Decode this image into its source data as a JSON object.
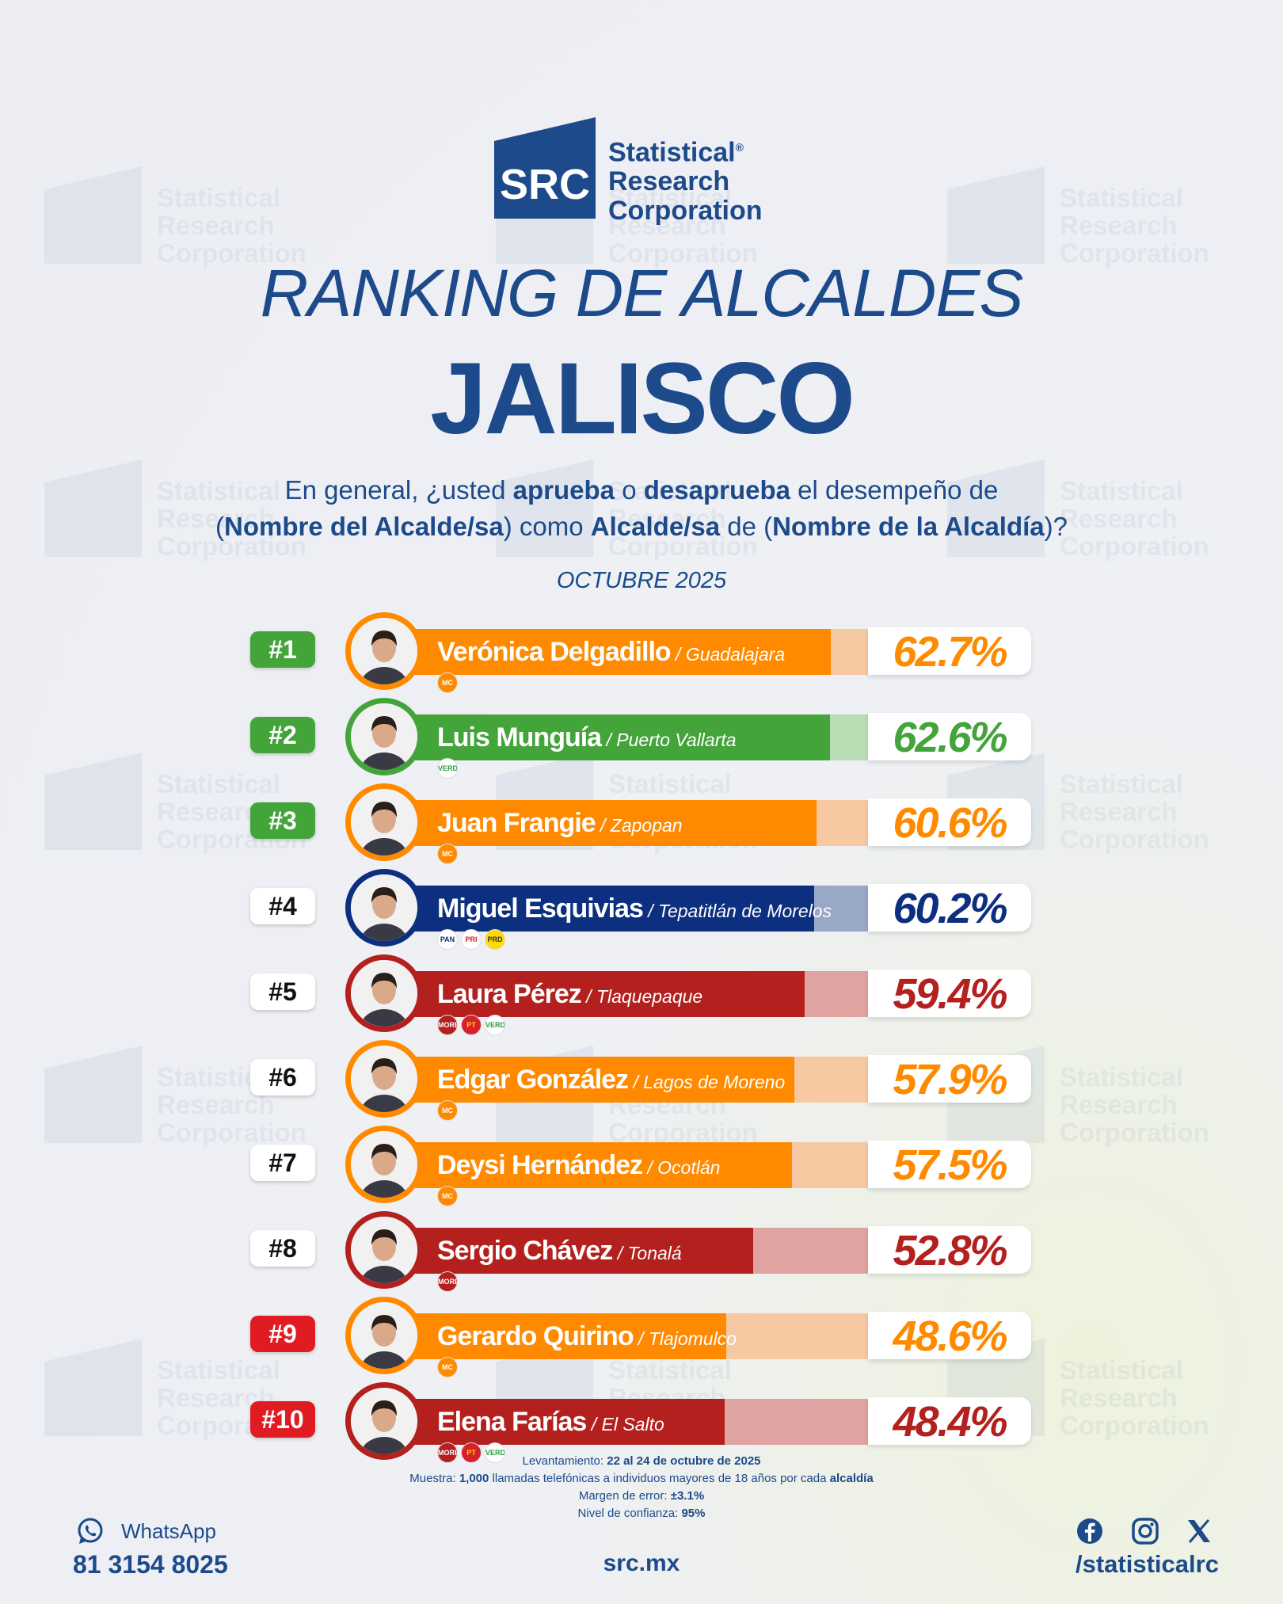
{
  "brand": {
    "logo_letters": "SRC",
    "name_line1": "Statistical",
    "name_line2": "Research",
    "name_line3": "Corporation",
    "registered": "®"
  },
  "header": {
    "title": "RANKING DE ALCALDES",
    "state": "JALISCO",
    "question": {
      "p1": "En general, ¿usted ",
      "b1": "aprueba",
      "p2": " o ",
      "b2": "desaprueba",
      "p3": " el desempeño de",
      "p4": "(",
      "b3": "Nombre del Alcalde/sa",
      "p5": ") como ",
      "b4": "Alcalde/sa",
      "p6": " de (",
      "b5": "Nombre de la Alcaldía",
      "p7": ")?"
    },
    "date": "OCTUBRE 2025"
  },
  "colors": {
    "orange": "#ff8a00",
    "orange_light": "#f7c9a3",
    "green": "#43a43a",
    "green_light": "#b9ddb5",
    "navy": "#0d2f7f",
    "navy_light": "#9aa8c8",
    "red": "#b3201d",
    "red_light": "#dfa3a1"
  },
  "chart_data": {
    "type": "bar",
    "title": "RANKING DE ALCALDES",
    "categories": [
      "Verónica Delgadillo",
      "Luis Munguía",
      "Juan Frangie",
      "Miguel Esquivias",
      "Laura Pérez",
      "Edgar González",
      "Deysi Hernández",
      "Sergio Chávez",
      "Gerardo Quirino",
      "Elena Farías"
    ],
    "values": [
      62.7,
      62.6,
      60.6,
      60.2,
      59.4,
      57.9,
      57.5,
      52.8,
      48.6,
      48.4
    ],
    "rows": [
      {
        "rank": "#1",
        "name": "Verónica Delgadillo",
        "municipality": "Guadalajara",
        "value": 62.7,
        "label": "62.7%",
        "color": "orange",
        "rank_style": "green",
        "parties": [
          "MC"
        ]
      },
      {
        "rank": "#2",
        "name": "Luis Munguía",
        "municipality": "Puerto Vallarta",
        "value": 62.6,
        "label": "62.6%",
        "color": "green",
        "rank_style": "green",
        "parties": [
          "VERDE"
        ]
      },
      {
        "rank": "#3",
        "name": "Juan Frangie",
        "municipality": "Zapopan",
        "value": 60.6,
        "label": "60.6%",
        "color": "orange",
        "rank_style": "green",
        "parties": [
          "MC"
        ]
      },
      {
        "rank": "#4",
        "name": "Miguel Esquivias",
        "municipality": "Tepatitlán de Morelos",
        "value": 60.2,
        "label": "60.2%",
        "color": "navy",
        "rank_style": "white",
        "parties": [
          "PAN",
          "PRI",
          "PRD"
        ]
      },
      {
        "rank": "#5",
        "name": "Laura Pérez",
        "municipality": "Tlaquepaque",
        "value": 59.4,
        "label": "59.4%",
        "color": "red",
        "rank_style": "white",
        "parties": [
          "MORENA",
          "PT",
          "VERDE"
        ]
      },
      {
        "rank": "#6",
        "name": "Edgar González",
        "municipality": "Lagos de Moreno",
        "value": 57.9,
        "label": "57.9%",
        "color": "orange",
        "rank_style": "white",
        "parties": [
          "MC"
        ]
      },
      {
        "rank": "#7",
        "name": "Deysi Hernández",
        "municipality": "Ocotlán",
        "value": 57.5,
        "label": "57.5%",
        "color": "orange",
        "rank_style": "white",
        "parties": [
          "MC"
        ]
      },
      {
        "rank": "#8",
        "name": "Sergio Chávez",
        "municipality": "Tonalá",
        "value": 52.8,
        "label": "52.8%",
        "color": "red",
        "rank_style": "white",
        "parties": [
          "MORENA"
        ]
      },
      {
        "rank": "#9",
        "name": "Gerardo Quirino",
        "municipality": "Tlajomulco",
        "value": 48.6,
        "label": "48.6%",
        "color": "orange",
        "rank_style": "red",
        "parties": [
          "MC"
        ]
      },
      {
        "rank": "#10",
        "name": "Elena Farías",
        "municipality": "El Salto",
        "value": 48.4,
        "label": "48.4%",
        "color": "red",
        "rank_style": "red",
        "parties": [
          "MORENA",
          "PT",
          "VERDE"
        ]
      }
    ]
  },
  "methodology": {
    "l1_label": "Levantamiento: ",
    "l1_value": "22 al 24 de octubre de 2025",
    "l2_label": "Muestra: ",
    "l2_value": "1,000",
    "l2_mid": " llamadas telefónicas a individuos mayores de 18 años por cada ",
    "l2_end": "alcaldía",
    "l3_label": "Margen de error: ",
    "l3_value": "±3.1%",
    "l4_label": "Nivel de confianza: ",
    "l4_value": "95%"
  },
  "footer": {
    "whatsapp_label": "WhatsApp",
    "phone": "81 3154 8025",
    "website": "src.mx",
    "handle": "/statisticalrc",
    "icons": [
      "whatsapp-icon",
      "facebook-icon",
      "instagram-icon",
      "x-icon"
    ]
  }
}
